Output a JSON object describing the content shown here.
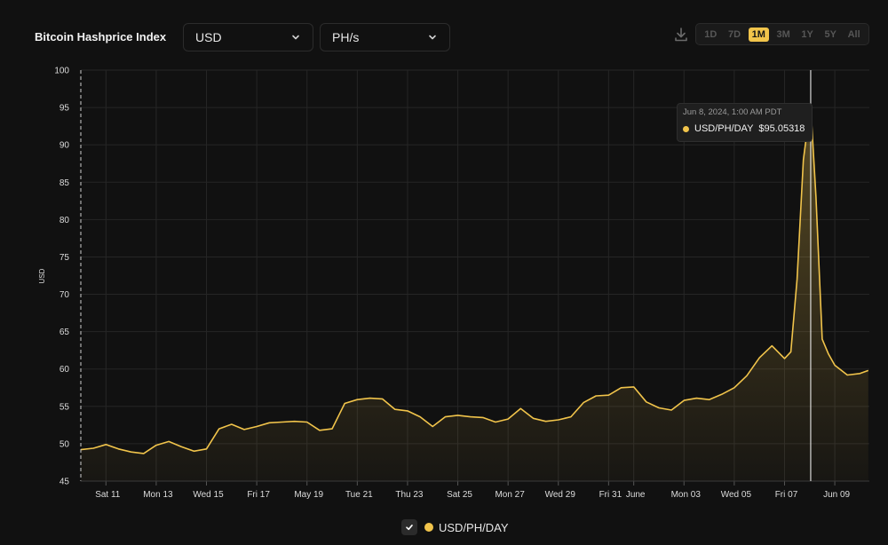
{
  "header": {
    "title": "Bitcoin Hashprice Index",
    "currency_select": "USD",
    "unit_select": "PH/s",
    "download_icon": "download-icon",
    "ranges": [
      "1D",
      "7D",
      "1M",
      "3M",
      "1Y",
      "5Y",
      "All"
    ],
    "active_range": "1M"
  },
  "colors": {
    "background": "#111111",
    "line": "#f1c44b",
    "grid": "#262626",
    "crosshair": "#ffffff"
  },
  "tooltip": {
    "date": "Jun 8, 2024, 1:00 AM PDT",
    "series": "USD/PH/DAY",
    "value": "$95.05318"
  },
  "legend": {
    "label": "USD/PH/DAY"
  },
  "chart_data": {
    "type": "area",
    "title": "",
    "xlabel": "",
    "ylabel": "USD",
    "ylim": [
      45,
      100
    ],
    "yticks": [
      45,
      50,
      55,
      60,
      65,
      70,
      75,
      80,
      85,
      90,
      95,
      100
    ],
    "x_start": "2024-05-10",
    "x_end": "2024-06-10",
    "x_unit": "days",
    "xticks": [
      {
        "label": "Sat 11",
        "date": "2024-05-11"
      },
      {
        "label": "Mon 13",
        "date": "2024-05-13"
      },
      {
        "label": "Wed 15",
        "date": "2024-05-15"
      },
      {
        "label": "Fri 17",
        "date": "2024-05-17"
      },
      {
        "label": "May 19",
        "date": "2024-05-19"
      },
      {
        "label": "Tue 21",
        "date": "2024-05-21"
      },
      {
        "label": "Thu 23",
        "date": "2024-05-23"
      },
      {
        "label": "Sat 25",
        "date": "2024-05-25"
      },
      {
        "label": "Mon 27",
        "date": "2024-05-27"
      },
      {
        "label": "Wed 29",
        "date": "2024-05-29"
      },
      {
        "label": "Fri 31",
        "date": "2024-05-31"
      },
      {
        "label": "June",
        "date": "2024-06-01"
      },
      {
        "label": "Mon 03",
        "date": "2024-06-03"
      },
      {
        "label": "Wed 05",
        "date": "2024-06-05"
      },
      {
        "label": "Fri 07",
        "date": "2024-06-07"
      },
      {
        "label": "Jun 09",
        "date": "2024-06-09"
      }
    ],
    "series": [
      {
        "name": "USD/PH/DAY",
        "x": [
          "2024-05-10 00:00",
          "2024-05-10 12:00",
          "2024-05-11 00:00",
          "2024-05-11 12:00",
          "2024-05-12 00:00",
          "2024-05-12 12:00",
          "2024-05-13 00:00",
          "2024-05-13 12:00",
          "2024-05-14 00:00",
          "2024-05-14 12:00",
          "2024-05-15 00:00",
          "2024-05-15 12:00",
          "2024-05-16 00:00",
          "2024-05-16 12:00",
          "2024-05-17 00:00",
          "2024-05-17 12:00",
          "2024-05-18 00:00",
          "2024-05-18 12:00",
          "2024-05-19 00:00",
          "2024-05-19 12:00",
          "2024-05-20 00:00",
          "2024-05-20 12:00",
          "2024-05-21 00:00",
          "2024-05-21 12:00",
          "2024-05-22 00:00",
          "2024-05-22 12:00",
          "2024-05-23 00:00",
          "2024-05-23 12:00",
          "2024-05-24 00:00",
          "2024-05-24 12:00",
          "2024-05-25 00:00",
          "2024-05-25 12:00",
          "2024-05-26 00:00",
          "2024-05-26 12:00",
          "2024-05-27 00:00",
          "2024-05-27 12:00",
          "2024-05-28 00:00",
          "2024-05-28 12:00",
          "2024-05-29 00:00",
          "2024-05-29 12:00",
          "2024-05-30 00:00",
          "2024-05-30 12:00",
          "2024-05-31 00:00",
          "2024-05-31 12:00",
          "2024-06-01 00:00",
          "2024-06-01 12:00",
          "2024-06-02 00:00",
          "2024-06-02 12:00",
          "2024-06-03 00:00",
          "2024-06-03 12:00",
          "2024-06-04 00:00",
          "2024-06-04 12:00",
          "2024-06-05 00:00",
          "2024-06-05 12:00",
          "2024-06-06 00:00",
          "2024-06-06 12:00",
          "2024-06-07 00:00",
          "2024-06-07 06:00",
          "2024-06-07 12:00",
          "2024-06-07 18:00",
          "2024-06-08 00:00",
          "2024-06-08 01:00",
          "2024-06-08 06:00",
          "2024-06-08 12:00",
          "2024-06-08 18:00",
          "2024-06-09 00:00",
          "2024-06-09 12:00",
          "2024-06-10 00:00",
          "2024-06-10 08:00"
        ],
        "y": [
          49.2,
          49.4,
          49.9,
          49.3,
          48.9,
          48.7,
          49.8,
          50.3,
          49.6,
          49.0,
          49.3,
          52.0,
          52.6,
          51.9,
          52.3,
          52.8,
          52.9,
          53.0,
          52.9,
          51.8,
          52.0,
          55.4,
          55.9,
          56.1,
          56.0,
          54.6,
          54.4,
          53.6,
          52.3,
          53.6,
          53.8,
          53.6,
          53.5,
          52.9,
          53.3,
          54.7,
          53.4,
          53.0,
          53.2,
          53.6,
          55.5,
          56.4,
          56.5,
          57.5,
          57.6,
          55.6,
          54.8,
          54.5,
          55.8,
          56.1,
          55.9,
          56.6,
          57.5,
          59.1,
          61.5,
          63.1,
          61.4,
          62.3,
          72.0,
          88.0,
          94.5,
          95.05,
          83.0,
          64.0,
          62.0,
          60.5,
          59.2,
          59.4,
          59.8
        ]
      }
    ],
    "crosshair": "2024-06-08 01:00",
    "grid": true,
    "legend_position": "bottom-center"
  }
}
